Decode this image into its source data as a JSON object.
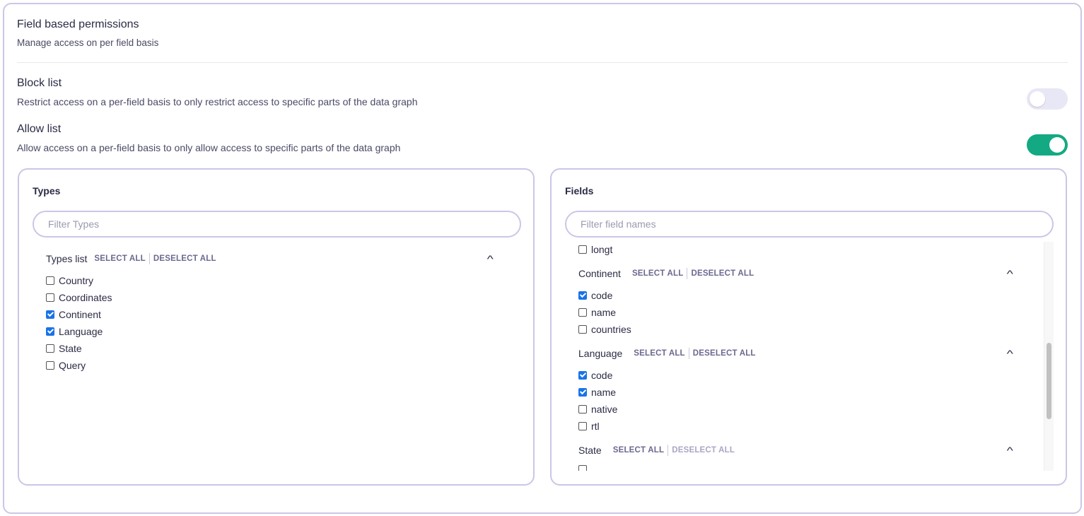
{
  "header": {
    "title": "Field based permissions",
    "subtitle": "Manage access on per field basis"
  },
  "block_list": {
    "title": "Block list",
    "description": "Restrict access on a per-field basis to only restrict access to specific parts of the data graph",
    "enabled": false
  },
  "allow_list": {
    "title": "Allow list",
    "description": "Allow access on a per-field basis to only allow access to specific parts of the data graph",
    "enabled": true
  },
  "colors": {
    "toggle_on": "#13a982",
    "toggle_off": "#e8e7f5",
    "border": "#cbc6e6",
    "checkbox": "#1a73e8"
  },
  "types_panel": {
    "title": "Types",
    "filter_placeholder": "Filter Types",
    "group_label": "Types list",
    "select_all": "SELECT ALL",
    "deselect_all": "DESELECT ALL",
    "items": [
      {
        "label": "Country",
        "checked": false
      },
      {
        "label": "Coordinates",
        "checked": false
      },
      {
        "label": "Continent",
        "checked": true
      },
      {
        "label": "Language",
        "checked": true
      },
      {
        "label": "State",
        "checked": false
      },
      {
        "label": "Query",
        "checked": false
      }
    ]
  },
  "fields_panel": {
    "title": "Fields",
    "filter_placeholder": "Filter field names",
    "select_all": "SELECT ALL",
    "deselect_all": "DESELECT ALL",
    "partial_items": [
      {
        "label": "longt",
        "checked": false
      }
    ],
    "groups": [
      {
        "name": "Continent",
        "items": [
          {
            "label": "code",
            "checked": true
          },
          {
            "label": "name",
            "checked": false
          },
          {
            "label": "countries",
            "checked": false
          }
        ]
      },
      {
        "name": "Language",
        "items": [
          {
            "label": "code",
            "checked": true
          },
          {
            "label": "name",
            "checked": true
          },
          {
            "label": "native",
            "checked": false
          },
          {
            "label": "rtl",
            "checked": false
          }
        ]
      },
      {
        "name": "State",
        "items": []
      }
    ]
  }
}
